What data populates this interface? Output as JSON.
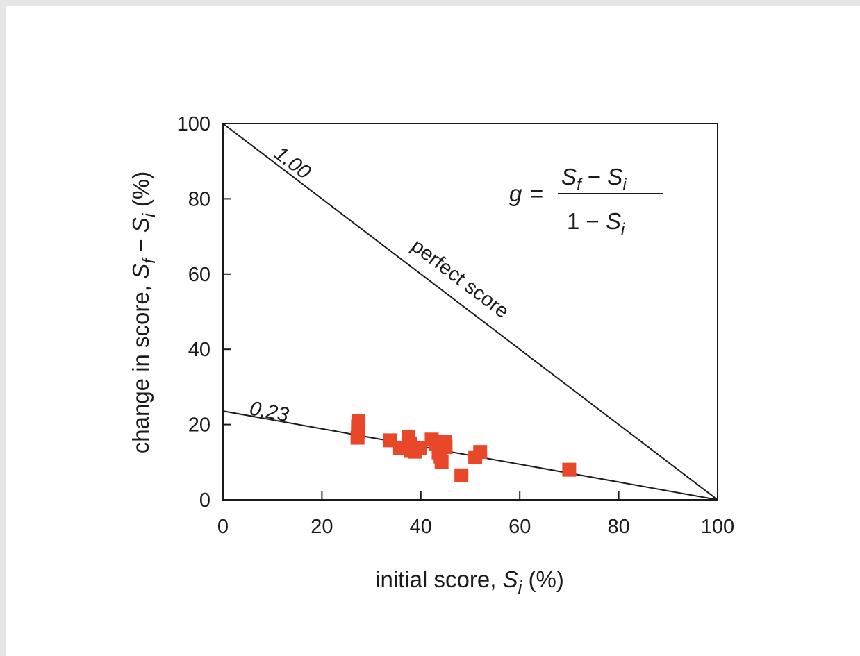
{
  "chart_data": {
    "type": "scatter",
    "xlabel": "initial score, S_i (%)",
    "ylabel": "change in score, S_f − S_i (%)",
    "xlabel_parts": {
      "pre": "initial score, ",
      "var": "S",
      "sub": "i",
      "post": " (%)"
    },
    "ylabel_parts": {
      "pre": "change in score, ",
      "var1": "S",
      "sub1": "f",
      "mid": " − ",
      "var2": "S",
      "sub2": "i",
      "post": " (%)"
    },
    "xlim": [
      0,
      100
    ],
    "ylim": [
      0,
      100
    ],
    "xticks": [
      0,
      20,
      40,
      60,
      80,
      100
    ],
    "yticks": [
      0,
      20,
      40,
      60,
      80,
      100
    ],
    "xtick_labels": [
      "0",
      "20",
      "40",
      "60",
      "80",
      "100"
    ],
    "ytick_labels": [
      "0",
      "20",
      "40",
      "60",
      "80",
      "100"
    ],
    "grid": false,
    "marker_color": "#e8472a",
    "points": [
      {
        "x": 27.4,
        "y": 21.0
      },
      {
        "x": 27.3,
        "y": 19.5
      },
      {
        "x": 27.3,
        "y": 18.0
      },
      {
        "x": 27.2,
        "y": 16.5
      },
      {
        "x": 33.8,
        "y": 15.8
      },
      {
        "x": 35.8,
        "y": 13.8
      },
      {
        "x": 37.5,
        "y": 16.8
      },
      {
        "x": 37.8,
        "y": 15.0
      },
      {
        "x": 38.0,
        "y": 13.0
      },
      {
        "x": 38.8,
        "y": 12.8
      },
      {
        "x": 39.8,
        "y": 13.8
      },
      {
        "x": 42.2,
        "y": 16.0
      },
      {
        "x": 43.0,
        "y": 14.8
      },
      {
        "x": 43.6,
        "y": 12.6
      },
      {
        "x": 44.0,
        "y": 11.5
      },
      {
        "x": 44.2,
        "y": 10.0
      },
      {
        "x": 44.8,
        "y": 15.5
      },
      {
        "x": 45.0,
        "y": 14.0
      },
      {
        "x": 48.2,
        "y": 6.5
      },
      {
        "x": 51.0,
        "y": 11.3
      },
      {
        "x": 52.0,
        "y": 12.7
      },
      {
        "x": 70.0,
        "y": 8.0
      }
    ],
    "lines": [
      {
        "label": "1.00",
        "note": "perfect score",
        "x": [
          0,
          100
        ],
        "y": [
          100,
          0
        ]
      },
      {
        "label": "0.23",
        "x": [
          0,
          100
        ],
        "y": [
          23.6,
          0
        ]
      }
    ],
    "formula": {
      "lhs": "g",
      "eq": "=",
      "num_var1": "S",
      "num_sub1": "f",
      "num_minus": " − ",
      "num_var2": "S",
      "num_sub2": "i",
      "den_one": "1",
      "den_minus": " − ",
      "den_var": "S",
      "den_sub": "i"
    }
  }
}
